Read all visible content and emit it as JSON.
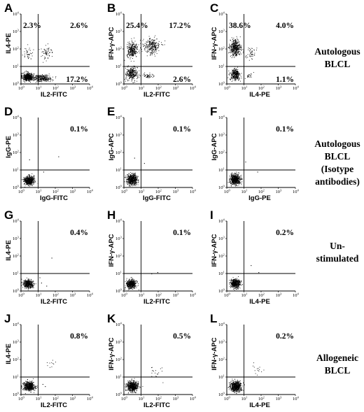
{
  "chart_data": [
    {
      "type": "scatter",
      "panel": "A",
      "xlabel": "IL2-FITC",
      "ylabel": "IL4-PE",
      "xlim": [
        1,
        10000
      ],
      "ylim": [
        1,
        10000
      ],
      "log_axes": true,
      "quadrants": {
        "ul": "2.3%",
        "ur": "2.6%",
        "lr": "17.2%"
      },
      "clusters": [
        {
          "cx": 2.5,
          "cy": 2.6,
          "sx": 2.0,
          "sy": 1.6,
          "n": 520
        },
        {
          "cx": 18,
          "cy": 2.2,
          "sx": 3.0,
          "sy": 1.5,
          "n": 260
        },
        {
          "cx": 2.5,
          "cy": 60,
          "sx": 1.8,
          "sy": 2.2,
          "n": 40
        },
        {
          "cx": 30,
          "cy": 60,
          "sx": 2.4,
          "sy": 2.2,
          "n": 60
        }
      ]
    },
    {
      "type": "scatter",
      "panel": "B",
      "xlabel": "IL2-FITC",
      "ylabel": "IFN-γ-APC",
      "xlim": [
        1,
        10000
      ],
      "ylim": [
        1,
        10000
      ],
      "log_axes": true,
      "quadrants": {
        "ul": "25.4%",
        "ur": "17.2%",
        "lr": "2.6%"
      },
      "clusters": [
        {
          "cx": 2.8,
          "cy": 4,
          "sx": 2.0,
          "sy": 2.2,
          "n": 300
        },
        {
          "cx": 3,
          "cy": 90,
          "sx": 1.9,
          "sy": 2.4,
          "n": 300
        },
        {
          "cx": 40,
          "cy": 150,
          "sx": 2.8,
          "sy": 2.5,
          "n": 260
        },
        {
          "cx": 25,
          "cy": 3,
          "sx": 2.0,
          "sy": 1.5,
          "n": 50
        }
      ]
    },
    {
      "type": "scatter",
      "panel": "C",
      "xlabel": "IL4-PE",
      "ylabel": "IFN-γ-APC",
      "xlim": [
        1,
        10000
      ],
      "ylim": [
        1,
        10000
      ],
      "log_axes": true,
      "quadrants": {
        "ul": "38.6%",
        "ur": "4.0%",
        "lr": "1.1%"
      },
      "clusters": [
        {
          "cx": 3,
          "cy": 3.5,
          "sx": 1.8,
          "sy": 2.0,
          "n": 320
        },
        {
          "cx": 3,
          "cy": 120,
          "sx": 1.9,
          "sy": 2.6,
          "n": 420
        },
        {
          "cx": 25,
          "cy": 60,
          "sx": 1.8,
          "sy": 2.2,
          "n": 50
        },
        {
          "cx": 20,
          "cy": 3,
          "sx": 1.6,
          "sy": 1.5,
          "n": 20
        }
      ]
    },
    {
      "type": "scatter",
      "panel": "D",
      "xlabel": "IgG-FITC",
      "ylabel": "IgG-PE",
      "xlim": [
        1,
        10000
      ],
      "ylim": [
        1,
        10000
      ],
      "log_axes": true,
      "quadrants": {
        "ur": "0.1%"
      },
      "clusters": [
        {
          "cx": 2.8,
          "cy": 2.6,
          "sx": 1.8,
          "sy": 1.7,
          "n": 520
        }
      ],
      "outliers": [
        [
          150,
          60
        ],
        [
          20,
          8
        ],
        [
          3,
          40
        ]
      ]
    },
    {
      "type": "scatter",
      "panel": "E",
      "xlabel": "IgG-FITC",
      "ylabel": "IgG-APC",
      "xlim": [
        1,
        10000
      ],
      "ylim": [
        1,
        10000
      ],
      "log_axes": true,
      "quadrants": {
        "ur": "0.1%"
      },
      "clusters": [
        {
          "cx": 3,
          "cy": 3,
          "sx": 1.9,
          "sy": 1.8,
          "n": 560
        }
      ],
      "outliers": [
        [
          15,
          25
        ],
        [
          4,
          50
        ]
      ]
    },
    {
      "type": "scatter",
      "panel": "F",
      "xlabel": "IgG-PE",
      "ylabel": "IgG-APC",
      "xlim": [
        1,
        10000
      ],
      "ylim": [
        1,
        10000
      ],
      "log_axes": true,
      "quadrants": {
        "ur": "0.1%"
      },
      "clusters": [
        {
          "cx": 3,
          "cy": 3,
          "sx": 1.9,
          "sy": 1.8,
          "n": 560
        }
      ],
      "outliers": [
        [
          12,
          30
        ],
        [
          60,
          8
        ]
      ]
    },
    {
      "type": "scatter",
      "panel": "G",
      "xlabel": "IL2-FITC",
      "ylabel": "IL4-PE",
      "xlim": [
        1,
        10000
      ],
      "ylim": [
        1,
        10000
      ],
      "log_axes": true,
      "quadrants": {
        "ur": "0.4%"
      },
      "clusters": [
        {
          "cx": 2.6,
          "cy": 2.6,
          "sx": 1.8,
          "sy": 1.6,
          "n": 420
        }
      ],
      "outliers": [
        [
          60,
          80
        ],
        [
          15,
          3
        ],
        [
          12,
          6
        ],
        [
          30,
          2
        ]
      ]
    },
    {
      "type": "scatter",
      "panel": "H",
      "xlabel": "IL2-FITC",
      "ylabel": "IFN-γ-APC",
      "xlim": [
        1,
        10000
      ],
      "ylim": [
        1,
        10000
      ],
      "log_axes": true,
      "quadrants": {
        "ur": "0.1%"
      },
      "clusters": [
        {
          "cx": 2.6,
          "cy": 2.6,
          "sx": 1.8,
          "sy": 1.7,
          "n": 460
        }
      ],
      "outliers": [
        [
          40,
          10
        ],
        [
          90,
          12
        ]
      ]
    },
    {
      "type": "scatter",
      "panel": "I",
      "xlabel": "IL4-PE",
      "ylabel": "IFN-γ-APC",
      "xlim": [
        1,
        10000
      ],
      "ylim": [
        1,
        10000
      ],
      "log_axes": true,
      "quadrants": {
        "ur": "0.2%"
      },
      "clusters": [
        {
          "cx": 3,
          "cy": 2.8,
          "sx": 1.8,
          "sy": 1.7,
          "n": 460
        }
      ],
      "outliers": [
        [
          25,
          30
        ],
        [
          70,
          12
        ]
      ]
    },
    {
      "type": "scatter",
      "panel": "J",
      "xlabel": "IL2-FITC",
      "ylabel": "IL4-PE",
      "xlim": [
        1,
        10000
      ],
      "ylim": [
        1,
        10000
      ],
      "log_axes": true,
      "quadrants": {
        "ur": "0.8%"
      },
      "clusters": [
        {
          "cx": 2.8,
          "cy": 3,
          "sx": 2.0,
          "sy": 1.7,
          "n": 540
        },
        {
          "cx": 50,
          "cy": 60,
          "sx": 1.7,
          "sy": 1.8,
          "n": 10
        }
      ],
      "outliers": [
        [
          18,
          4
        ],
        [
          25,
          3
        ]
      ]
    },
    {
      "type": "scatter",
      "panel": "K",
      "xlabel": "IL2-FITC",
      "ylabel": "IFN-γ-APC",
      "xlim": [
        1,
        10000
      ],
      "ylim": [
        1,
        10000
      ],
      "log_axes": true,
      "quadrants": {
        "ur": "0.5%"
      },
      "clusters": [
        {
          "cx": 3,
          "cy": 3,
          "sx": 2.0,
          "sy": 1.8,
          "n": 580
        },
        {
          "cx": 70,
          "cy": 20,
          "sx": 2.2,
          "sy": 2.5,
          "n": 18
        }
      ]
    },
    {
      "type": "scatter",
      "panel": "L",
      "xlabel": "IL4-PE",
      "ylabel": "IFN-γ-APC",
      "xlim": [
        1,
        10000
      ],
      "ylim": [
        1,
        10000
      ],
      "log_axes": true,
      "quadrants": {
        "ur": "0.2%"
      },
      "clusters": [
        {
          "cx": 3.2,
          "cy": 3,
          "sx": 2.0,
          "sy": 1.8,
          "n": 580
        },
        {
          "cx": 60,
          "cy": 25,
          "sx": 2.0,
          "sy": 2.4,
          "n": 14
        }
      ]
    }
  ],
  "row_labels": [
    "Autologous\nBLCL",
    "Autologous\nBLCL\n(Isotype\nantibodies)",
    "Un-\nstimulated",
    "Allogeneic\nBLCL"
  ],
  "tick_labels": {
    "major": [
      "10",
      "10",
      "10",
      "10",
      "10"
    ],
    "exponents": [
      "0",
      "1",
      "2",
      "3",
      "4"
    ]
  },
  "colors": {
    "ink": "#000000",
    "background": "#ffffff"
  }
}
